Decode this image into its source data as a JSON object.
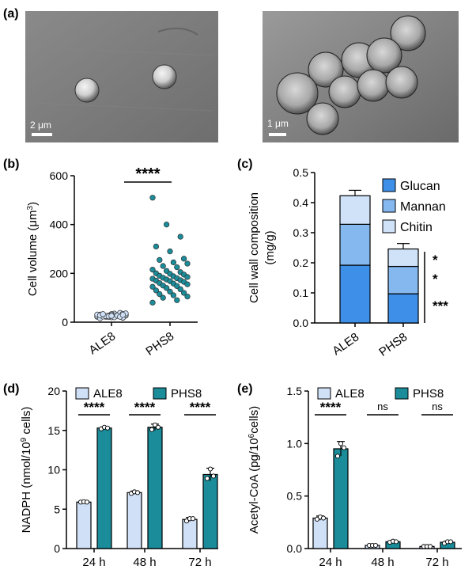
{
  "panels": {
    "a": {
      "label": "(a)",
      "left_image": {
        "scalebar_label": "2 μm"
      },
      "right_image": {
        "scalebar_label": "1 μm"
      }
    },
    "b": {
      "label": "(b)"
    },
    "c": {
      "label": "(c)"
    },
    "d": {
      "label": "(d)"
    },
    "e": {
      "label": "(e)"
    }
  },
  "colors": {
    "ale8_fill": "#cfe0f7",
    "phs8_fill": "#1a8c9a",
    "glucan": "#3d8fe8",
    "mannan": "#86b8f0",
    "chitin": "#cfe2f8",
    "sem_background": "#7d7d7d"
  },
  "chart_data": [
    {
      "panel": "b",
      "type": "scatter",
      "categories": [
        "ALE8",
        "PHS8"
      ],
      "ylabel": "Cell volume (μm³)",
      "ylabel_parts": [
        "Cell volume (μm",
        "3",
        ")"
      ],
      "ylim": [
        0,
        600
      ],
      "yticks": [
        "0",
        "200",
        "400",
        "600"
      ],
      "significance": "****",
      "series": [
        {
          "category": "ALE8",
          "values": [
            22,
            25,
            28,
            30,
            20,
            18,
            32,
            35,
            27,
            24,
            26,
            29,
            21,
            23,
            31,
            33,
            19,
            25,
            28,
            30,
            22,
            26,
            24,
            27,
            38,
            16,
            29,
            34,
            23,
            20,
            36,
            25,
            27,
            31,
            24,
            22,
            28,
            26,
            30,
            33
          ]
        },
        {
          "category": "PHS8",
          "values": [
            510,
            400,
            350,
            310,
            290,
            260,
            255,
            245,
            240,
            230,
            225,
            215,
            210,
            205,
            200,
            198,
            195,
            190,
            188,
            185,
            182,
            180,
            178,
            175,
            172,
            170,
            168,
            165,
            160,
            158,
            155,
            150,
            148,
            145,
            140,
            135,
            130,
            125,
            120,
            115,
            110,
            105,
            100,
            90,
            80
          ]
        }
      ]
    },
    {
      "panel": "c",
      "type": "bar",
      "stacked": true,
      "categories": [
        "ALE8",
        "PHS8"
      ],
      "ylabel_lines": [
        "Cell wall composition",
        "(mg/g)"
      ],
      "ylim": [
        0,
        0.5
      ],
      "yticks": [
        "0.0",
        "0.1",
        "0.2",
        "0.3",
        "0.4",
        "0.5"
      ],
      "series": [
        {
          "name": "Glucan",
          "values": [
            0.192,
            0.097
          ],
          "errors": [
            0.004,
            0.003
          ]
        },
        {
          "name": "Mannan",
          "values": [
            0.136,
            0.091
          ],
          "errors": [
            0.003,
            0.012
          ]
        },
        {
          "name": "Chitin",
          "values": [
            0.095,
            0.058
          ],
          "errors": [
            0.018,
            0.018
          ]
        }
      ],
      "significance": [
        "*",
        "*",
        "***"
      ]
    },
    {
      "panel": "d",
      "type": "bar",
      "categories": [
        "24 h",
        "48 h",
        "72 h"
      ],
      "ylabel": "NADPH (nmol/10⁹ cells)",
      "ylabel_parts": [
        "NADPH (nmol/10",
        "9",
        " cells)"
      ],
      "ylim": [
        0,
        20
      ],
      "yticks": [
        "0",
        "5",
        "10",
        "15",
        "20"
      ],
      "series": [
        {
          "name": "ALE8",
          "values": [
            5.9,
            7.1,
            3.7
          ],
          "errors": [
            0.1,
            0.2,
            0.25
          ],
          "points": [
            [
              5.9,
              5.95,
              5.9
            ],
            [
              7.0,
              7.2,
              7.1
            ],
            [
              3.5,
              3.8,
              3.8
            ]
          ]
        },
        {
          "name": "PHS8",
          "values": [
            15.3,
            15.4,
            9.4
          ],
          "errors": [
            0.15,
            0.4,
            0.8
          ],
          "points": [
            [
              15.2,
              15.4,
              15.3
            ],
            [
              15.1,
              15.7,
              15.4
            ],
            [
              8.9,
              10.1,
              9.2
            ]
          ]
        }
      ],
      "significance": [
        "****",
        "****",
        "****"
      ]
    },
    {
      "panel": "e",
      "type": "bar",
      "categories": [
        "24 h",
        "48 h",
        "72 h"
      ],
      "ylabel": "Acetyl-CoA (pg/10⁶cells)",
      "ylabel_parts": [
        "Acetyl-CoA (pg/10",
        "6",
        "cells)"
      ],
      "ylim": [
        0,
        1.5
      ],
      "yticks": [
        "0.0",
        "0.5",
        "1.0",
        "1.5"
      ],
      "series": [
        {
          "name": "ALE8",
          "values": [
            0.29,
            0.03,
            0.02
          ],
          "errors": [
            0.02,
            0.005,
            0.005
          ],
          "points": [
            [
              0.28,
              0.3,
              0.29
            ],
            [
              0.03,
              0.03,
              0.03
            ],
            [
              0.02,
              0.02,
              0.02
            ]
          ]
        },
        {
          "name": "PHS8",
          "values": [
            0.95,
            0.065,
            0.06
          ],
          "errors": [
            0.07,
            0.008,
            0.01
          ],
          "points": [
            [
              0.88,
              1.0,
              0.96
            ],
            [
              0.06,
              0.07,
              0.065
            ],
            [
              0.05,
              0.065,
              0.065
            ]
          ]
        }
      ],
      "significance": [
        "****",
        "ns",
        "ns"
      ]
    }
  ]
}
